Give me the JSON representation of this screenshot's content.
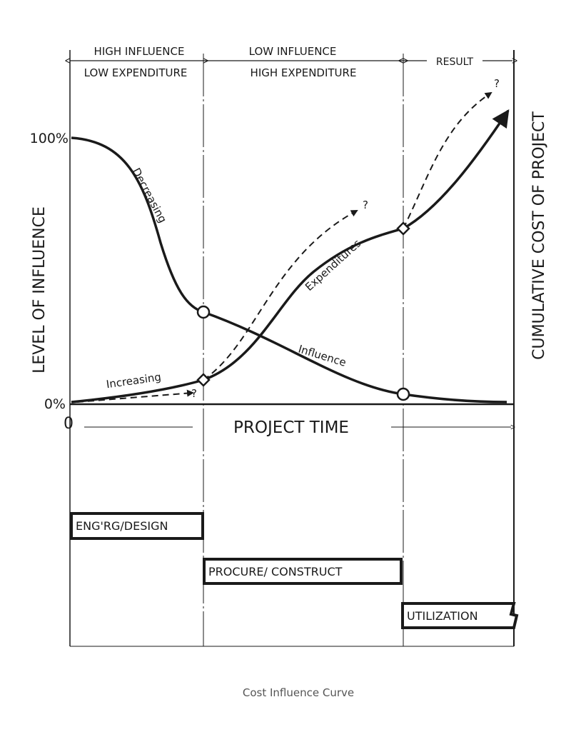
{
  "header": {
    "left": [
      "HIGH INFLUENCE",
      "LOW EXPENDITURE"
    ],
    "middle": [
      "LOW INFLUENCE",
      "HIGH EXPENDITURE"
    ],
    "right": "RESULT"
  },
  "axes": {
    "left_label": "LEVEL OF INFLUENCE",
    "right_label": "CUMULATIVE COST OF PROJECT",
    "top_tick": "100%",
    "bottom_tick": "0%",
    "origin": "0",
    "time_label": "PROJECT TIME"
  },
  "curves": {
    "influence_start": "Decreasing",
    "influence_end": "Influence",
    "expenditure_start": "Increasing",
    "expenditure_mid": "Expenditures",
    "question_marks": [
      "?",
      "?",
      "?"
    ]
  },
  "phases": [
    "ENG'RG/DESIGN",
    "PROCURE/ CONSTRUCT",
    "UTILIZATION"
  ],
  "caption": "Cost Influence Curve"
}
